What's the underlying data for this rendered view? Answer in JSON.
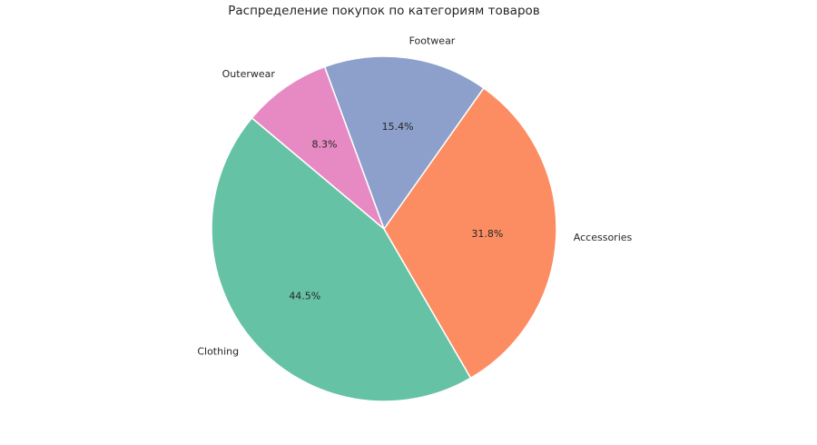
{
  "chart_data": {
    "type": "pie",
    "title": "Распределение покупок по категориям товаров",
    "slices": [
      {
        "label": "Clothing",
        "value": 44.5,
        "pct_label": "44.5%",
        "color": "#66c2a5"
      },
      {
        "label": "Accessories",
        "value": 31.8,
        "pct_label": "31.8%",
        "color": "#fc8d62"
      },
      {
        "label": "Footwear",
        "value": 15.4,
        "pct_label": "15.4%",
        "color": "#8da0cb"
      },
      {
        "label": "Outerwear",
        "value": 8.3,
        "pct_label": "8.3%",
        "color": "#e78ac3"
      }
    ],
    "start_angle_deg": 140,
    "direction": "counterclockwise",
    "label_distance": 1.1,
    "pct_distance": 0.6,
    "wedge_edge_color": "#ffffff",
    "text_color": "#262626",
    "background_color": "#ffffff",
    "legend": "none"
  }
}
